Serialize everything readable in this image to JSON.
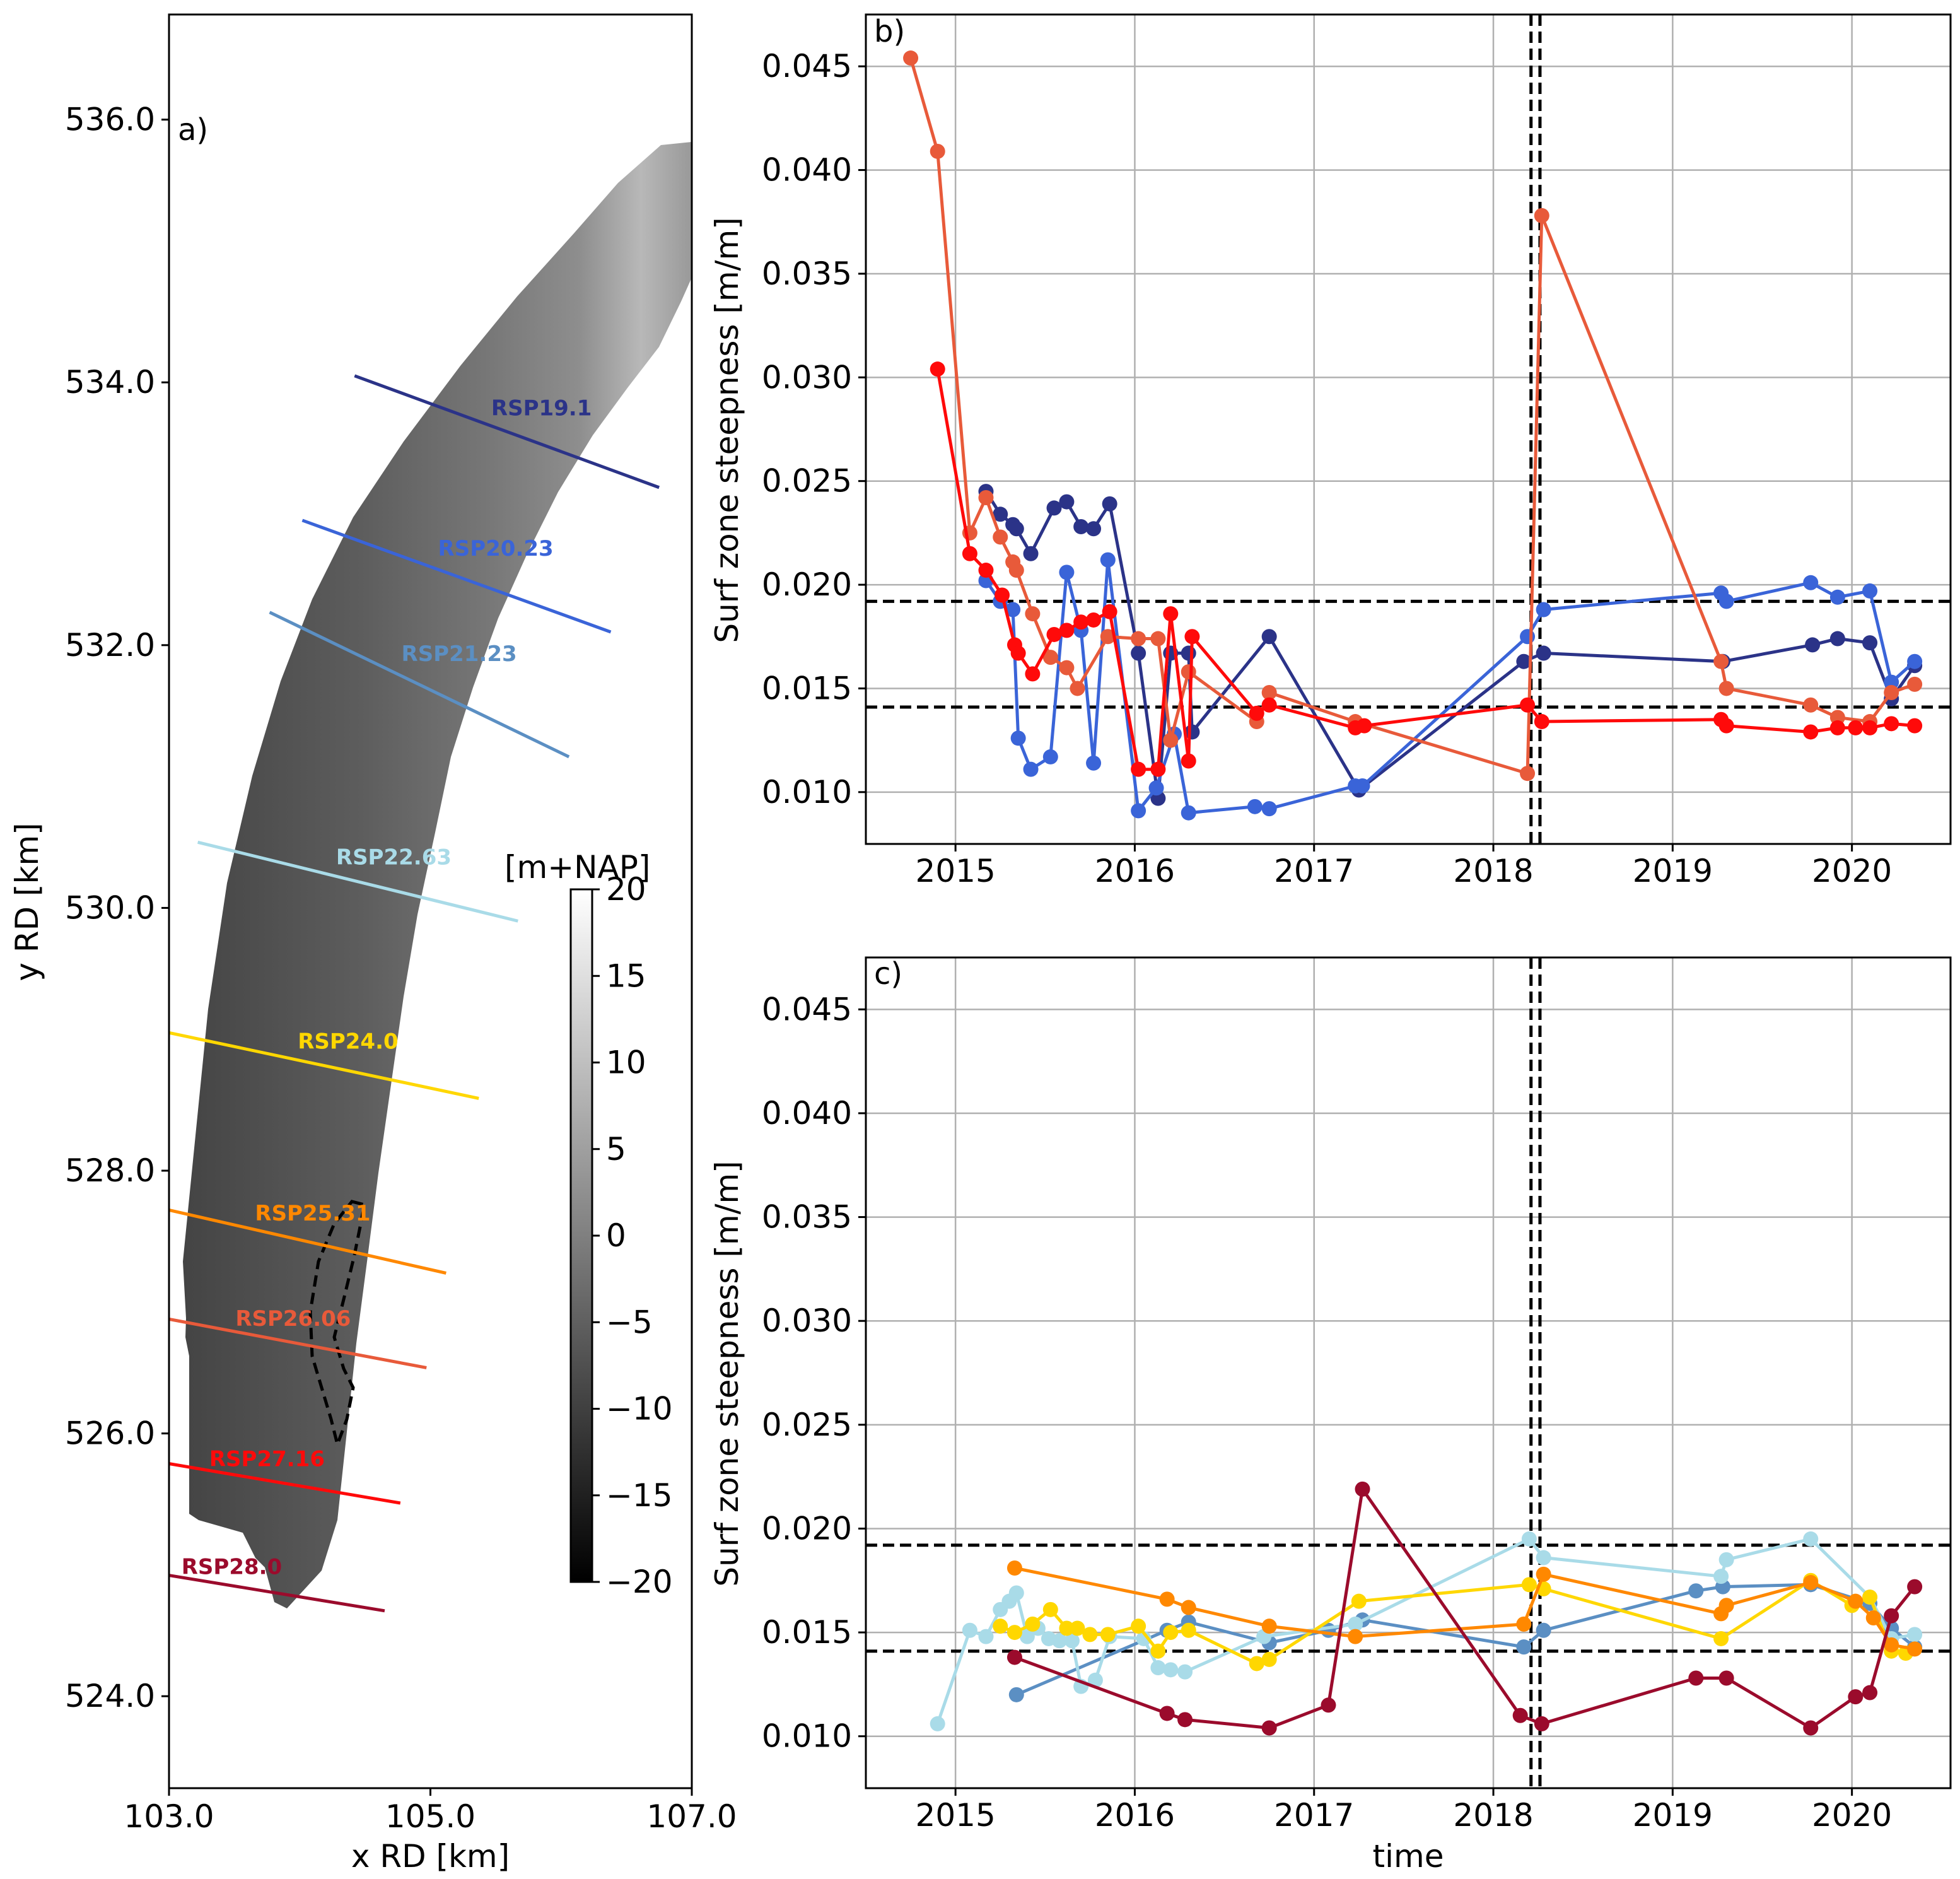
{
  "chart_data": [
    {
      "panel": "a)",
      "type": "map",
      "xlabel": "x RD [km]",
      "ylabel": "y RD [km]",
      "xlim": [
        103.0,
        107.0
      ],
      "ylim": [
        523.3,
        536.8
      ],
      "xticks": [
        "103.0",
        "105.0",
        "107.0"
      ],
      "yticks": [
        "524.0",
        "526.0",
        "528.0",
        "530.0",
        "532.0",
        "534.0",
        "536.0"
      ],
      "colorbar": {
        "label": "[m+NAP]",
        "range": [
          -20,
          20
        ],
        "ticks": [
          "20",
          "15",
          "10",
          "5",
          "0",
          "−5",
          "−10",
          "−15",
          "−20"
        ]
      },
      "transects": [
        {
          "name": "RSP19.1",
          "color": "#2b3388",
          "x1": 104.42,
          "y1": 534.05,
          "x2": 106.75,
          "y2": 533.2,
          "lx": 105.85,
          "ly": 533.75
        },
        {
          "name": "RSP20.23",
          "color": "#3a64d8",
          "x1": 104.02,
          "y1": 532.95,
          "x2": 106.38,
          "y2": 532.1,
          "lx": 105.5,
          "ly": 532.68
        },
        {
          "name": "RSP21.23",
          "color": "#5b8fc3",
          "x1": 103.77,
          "y1": 532.25,
          "x2": 106.06,
          "y2": 531.15,
          "lx": 105.22,
          "ly": 531.88
        },
        {
          "name": "RSP22.63",
          "color": "#a9dbe8",
          "x1": 103.22,
          "y1": 530.5,
          "x2": 105.67,
          "y2": 529.9,
          "lx": 104.72,
          "ly": 530.33
        },
        {
          "name": "RSP24.0",
          "color": "#ffd700",
          "x1": 103.0,
          "y1": 529.05,
          "x2": 105.37,
          "y2": 528.55,
          "lx": 104.37,
          "ly": 528.93
        },
        {
          "name": "RSP25.31",
          "color": "#ff8800",
          "x1": 103.0,
          "y1": 527.7,
          "x2": 105.12,
          "y2": 527.22,
          "lx": 104.1,
          "ly": 527.62
        },
        {
          "name": "RSP26.06",
          "color": "#e85a3a",
          "x1": 103.0,
          "y1": 526.87,
          "x2": 104.97,
          "y2": 526.5,
          "lx": 103.95,
          "ly": 526.82
        },
        {
          "name": "RSP27.16",
          "color": "#ff0a0a",
          "x1": 103.0,
          "y1": 525.77,
          "x2": 104.77,
          "y2": 525.47,
          "lx": 103.75,
          "ly": 525.75
        },
        {
          "name": "RSP28.0",
          "color": "#9b0b2c",
          "x1": 103.0,
          "y1": 524.92,
          "x2": 104.65,
          "y2": 524.65,
          "lx": 103.48,
          "ly": 524.93
        }
      ]
    },
    {
      "panel": "b)",
      "type": "line",
      "xlabel": "",
      "ylabel": "Surf zone steepness [m/m]",
      "xlim": [
        2014.5,
        2020.55
      ],
      "ylim": [
        0.0075,
        0.0475
      ],
      "xticks": [
        "2015",
        "2016",
        "2017",
        "2018",
        "2019",
        "2020"
      ],
      "yticks": [
        "0.010",
        "0.015",
        "0.020",
        "0.025",
        "0.030",
        "0.035",
        "0.040",
        "0.045"
      ],
      "hlines": [
        0.0192,
        0.0141
      ],
      "vlines": [
        2018.21,
        2018.26
      ],
      "series": [
        {
          "name": "RSP19.1",
          "color": "#2b3388",
          "x": [
            2015.17,
            2015.25,
            2015.32,
            2015.34,
            2015.42,
            2015.55,
            2015.62,
            2015.7,
            2015.77,
            2015.86,
            2016.02,
            2016.13,
            2016.2,
            2016.3,
            2016.32,
            2016.75,
            2017.25,
            2018.17,
            2018.28,
            2019.28,
            2019.78,
            2019.92,
            2020.1,
            2020.22,
            2020.35
          ],
          "y": [
            0.0245,
            0.0234,
            0.0229,
            0.0227,
            0.0215,
            0.0237,
            0.024,
            0.0228,
            0.0227,
            0.0239,
            0.0167,
            0.0097,
            0.0167,
            0.0167,
            0.0129,
            0.0175,
            0.0101,
            0.0163,
            0.0167,
            0.0163,
            0.0171,
            0.0174,
            0.0172,
            0.0145,
            0.0161
          ]
        },
        {
          "name": "RSP20.23",
          "color": "#3a64d8",
          "x": [
            2015.17,
            2015.25,
            2015.32,
            2015.35,
            2015.42,
            2015.53,
            2015.62,
            2015.7,
            2015.77,
            2015.85,
            2016.02,
            2016.12,
            2016.22,
            2016.3,
            2016.67,
            2016.75,
            2017.23,
            2017.27,
            2018.19,
            2018.28,
            2019.27,
            2019.3,
            2019.77,
            2019.92,
            2020.1,
            2020.22,
            2020.35
          ],
          "y": [
            0.0202,
            0.0192,
            0.0188,
            0.0126,
            0.0111,
            0.0117,
            0.0206,
            0.0178,
            0.0114,
            0.0212,
            0.0091,
            0.0102,
            0.0128,
            0.009,
            0.0093,
            0.0092,
            0.0103,
            0.0103,
            0.0175,
            0.0188,
            0.0196,
            0.0192,
            0.0201,
            0.0194,
            0.0197,
            0.0153,
            0.0163
          ]
        },
        {
          "name": "RSP26.06",
          "color": "#e85a3a",
          "x": [
            2014.75,
            2014.9,
            2015.08,
            2015.17,
            2015.25,
            2015.32,
            2015.34,
            2015.43,
            2015.53,
            2015.62,
            2015.68,
            2015.85,
            2016.02,
            2016.13,
            2016.2,
            2016.3,
            2016.68,
            2016.75,
            2017.23,
            2018.19,
            2018.27,
            2019.27,
            2019.3,
            2019.77,
            2019.92,
            2020.1,
            2020.22,
            2020.35
          ],
          "y": [
            0.0454,
            0.0409,
            0.0225,
            0.0242,
            0.0223,
            0.0211,
            0.0207,
            0.0186,
            0.0165,
            0.016,
            0.015,
            0.0175,
            0.0174,
            0.0174,
            0.0125,
            0.0158,
            0.0134,
            0.0148,
            0.0134,
            0.0109,
            0.0378,
            0.0163,
            0.015,
            0.0142,
            0.0136,
            0.0134,
            0.0148,
            0.0152
          ]
        },
        {
          "name": "RSP27.16",
          "color": "#ff0a0a",
          "x": [
            2014.9,
            2015.08,
            2015.17,
            2015.26,
            2015.33,
            2015.35,
            2015.43,
            2015.55,
            2015.62,
            2015.7,
            2015.77,
            2015.86,
            2016.02,
            2016.13,
            2016.2,
            2016.3,
            2016.32,
            2016.68,
            2016.75,
            2017.23,
            2017.28,
            2018.19,
            2018.27,
            2019.27,
            2019.3,
            2019.77,
            2019.92,
            2020.02,
            2020.1,
            2020.22,
            2020.35
          ],
          "y": [
            0.0304,
            0.0215,
            0.0207,
            0.0195,
            0.0171,
            0.0167,
            0.0157,
            0.0176,
            0.0178,
            0.0182,
            0.0183,
            0.0187,
            0.0111,
            0.0111,
            0.0186,
            0.0115,
            0.0175,
            0.0138,
            0.0142,
            0.0131,
            0.0132,
            0.0142,
            0.0134,
            0.0135,
            0.0132,
            0.0129,
            0.0131,
            0.0131,
            0.0131,
            0.0133,
            0.0132
          ]
        }
      ]
    },
    {
      "panel": "c)",
      "type": "line",
      "xlabel": "time",
      "ylabel": "Surf zone steepness [m/m]",
      "xlim": [
        2014.5,
        2020.55
      ],
      "ylim": [
        0.0075,
        0.0475
      ],
      "xticks": [
        "2015",
        "2016",
        "2017",
        "2018",
        "2019",
        "2020"
      ],
      "yticks": [
        "0.010",
        "0.015",
        "0.020",
        "0.025",
        "0.030",
        "0.035",
        "0.040",
        "0.045"
      ],
      "hlines": [
        0.0192,
        0.0141
      ],
      "vlines": [
        2018.21,
        2018.26
      ],
      "series": [
        {
          "name": "RSP21.23",
          "color": "#5b8fc3",
          "x": [
            2015.34,
            2016.18,
            2016.3,
            2016.75,
            2017.08,
            2017.27,
            2018.17,
            2018.28,
            2019.13,
            2019.28,
            2019.77,
            2020.1,
            2020.22,
            2020.35
          ],
          "y": [
            0.012,
            0.0151,
            0.0155,
            0.0145,
            0.0151,
            0.0156,
            0.0143,
            0.0151,
            0.017,
            0.0172,
            0.0173,
            0.0164,
            0.0152,
            0.0143
          ]
        },
        {
          "name": "RSP22.63",
          "color": "#a9dbe8",
          "x": [
            2014.9,
            2015.08,
            2015.17,
            2015.25,
            2015.3,
            2015.34,
            2015.4,
            2015.46,
            2015.52,
            2015.58,
            2015.65,
            2015.7,
            2015.78,
            2015.86,
            2016.05,
            2016.13,
            2016.2,
            2016.28,
            2016.72,
            2017.23,
            2018.2,
            2018.28,
            2019.27,
            2019.3,
            2019.77,
            2020.1,
            2020.22,
            2020.35
          ],
          "y": [
            0.0106,
            0.0151,
            0.0148,
            0.0161,
            0.0165,
            0.0169,
            0.0148,
            0.0152,
            0.0147,
            0.0146,
            0.0146,
            0.0124,
            0.0127,
            0.0148,
            0.0147,
            0.0133,
            0.0132,
            0.0131,
            0.0148,
            0.0154,
            0.0195,
            0.0186,
            0.0177,
            0.0185,
            0.0195,
            0.0167,
            0.0147,
            0.0149
          ]
        },
        {
          "name": "RSP24.0",
          "color": "#ffd700",
          "x": [
            2015.25,
            2015.33,
            2015.43,
            2015.53,
            2015.62,
            2015.68,
            2015.75,
            2015.85,
            2016.02,
            2016.13,
            2016.2,
            2016.3,
            2016.68,
            2016.75,
            2017.25,
            2018.2,
            2018.28,
            2019.27,
            2019.77,
            2020.0,
            2020.1,
            2020.22,
            2020.3
          ],
          "y": [
            0.0153,
            0.015,
            0.0154,
            0.0161,
            0.0152,
            0.0152,
            0.0149,
            0.0149,
            0.0153,
            0.0141,
            0.015,
            0.0151,
            0.0135,
            0.0137,
            0.0165,
            0.0173,
            0.0171,
            0.0147,
            0.0175,
            0.0163,
            0.0167,
            0.0141,
            0.014
          ]
        },
        {
          "name": "RSP25.31",
          "color": "#ff8800",
          "x": [
            2015.33,
            2016.18,
            2016.3,
            2016.75,
            2017.23,
            2018.17,
            2018.28,
            2019.27,
            2019.3,
            2019.77,
            2020.02,
            2020.12,
            2020.22,
            2020.35
          ],
          "y": [
            0.0181,
            0.0166,
            0.0162,
            0.0153,
            0.0148,
            0.0154,
            0.0178,
            0.0159,
            0.0163,
            0.0174,
            0.0165,
            0.0157,
            0.0144,
            0.0142
          ]
        },
        {
          "name": "RSP28.0",
          "color": "#9b0b2c",
          "x": [
            2015.33,
            2016.18,
            2016.28,
            2016.75,
            2017.08,
            2017.27,
            2018.15,
            2018.27,
            2019.13,
            2019.3,
            2019.77,
            2020.02,
            2020.1,
            2020.22,
            2020.35
          ],
          "y": [
            0.0138,
            0.0111,
            0.0108,
            0.0104,
            0.0115,
            0.0219,
            0.011,
            0.0106,
            0.0128,
            0.0128,
            0.0104,
            0.0119,
            0.0121,
            0.0158,
            0.0172
          ]
        }
      ]
    }
  ]
}
